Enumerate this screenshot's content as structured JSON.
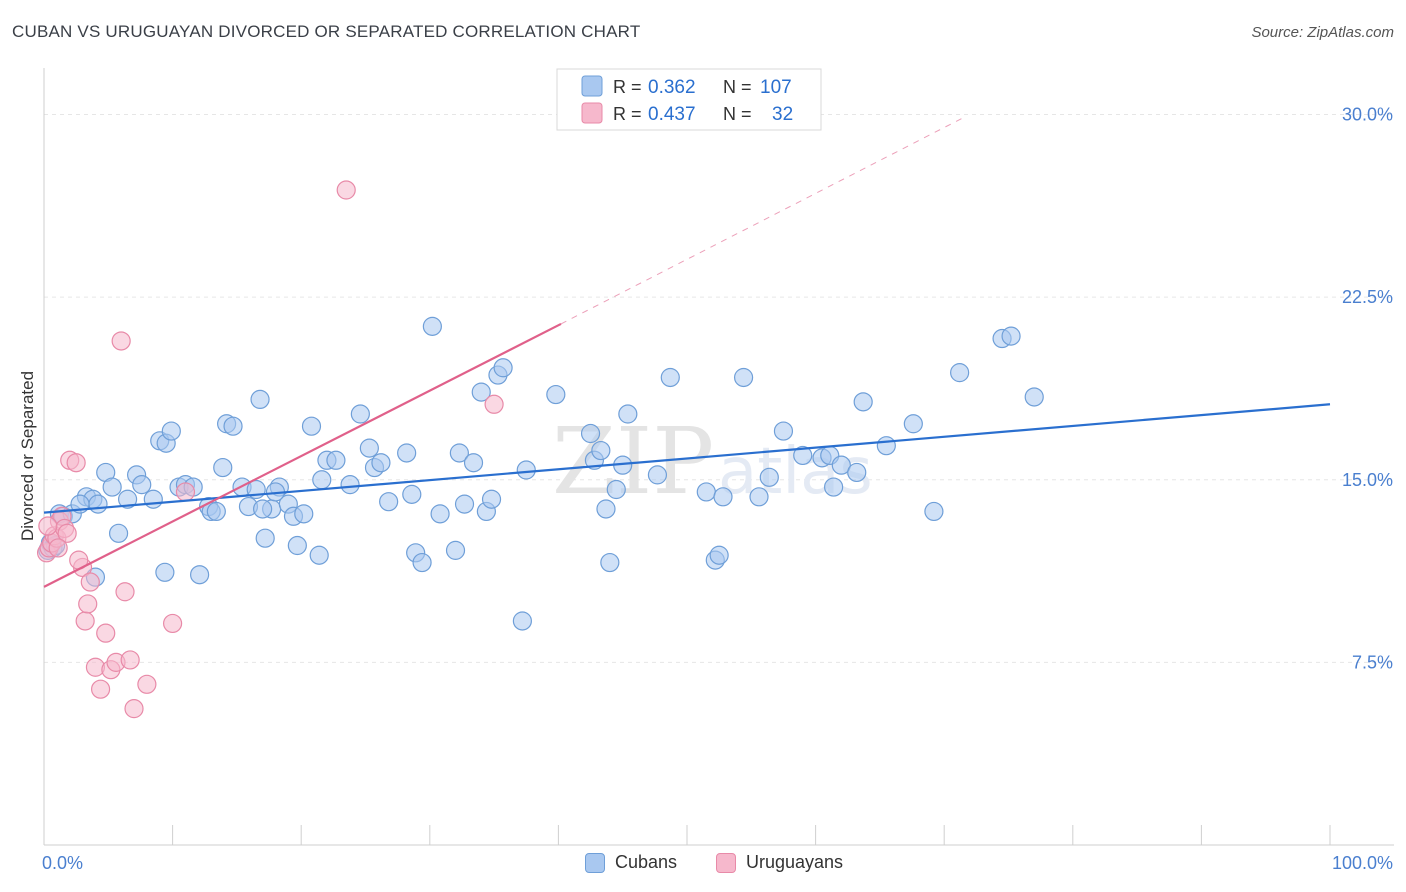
{
  "title": "CUBAN VS URUGUAYAN DIVORCED OR SEPARATED CORRELATION CHART",
  "source": "Source: ZipAtlas.com",
  "watermark": {
    "zip": "ZIP",
    "atlas": "atlas"
  },
  "colors": {
    "cubans_fill": "#a9c8f0",
    "cubans_stroke": "#6f9fd8",
    "cubans_line": "#2a6fcf",
    "uruguayans_fill": "#f6b8cc",
    "uruguayans_stroke": "#e88aa8",
    "uruguayans_line": "#e0608a",
    "tick_label": "#4a7fcf",
    "grid": "#e6e6e6"
  },
  "legend_box": {
    "rows": [
      {
        "r_label": "R =",
        "r_value": "0.362",
        "n_label": "N =",
        "n_value": "107"
      },
      {
        "r_label": "R =",
        "r_value": "0.437",
        "n_label": "N =",
        "n_value": "32"
      }
    ]
  },
  "chart_data": {
    "type": "scatter",
    "title": "CUBAN VS URUGUAYAN DIVORCED OR SEPARATED CORRELATION CHART",
    "xlabel": "",
    "ylabel": "Divorced or Separated",
    "xlim": [
      0,
      100
    ],
    "ylim": [
      0,
      31.5
    ],
    "x_tick_labels": [
      "0.0%",
      "100.0%"
    ],
    "y_ticks": [
      7.5,
      15.0,
      22.5,
      30.0
    ],
    "y_tick_labels": [
      "7.5%",
      "15.0%",
      "22.5%",
      "30.0%"
    ],
    "grid": true,
    "legend_position": "top-center",
    "series": [
      {
        "name": "Cubans",
        "r": 0.362,
        "n": 107,
        "trend": {
          "x": [
            0,
            100
          ],
          "y": [
            13.65,
            18.1
          ]
        },
        "points": [
          [
            0.3,
            12.1
          ],
          [
            0.5,
            12.4
          ],
          [
            0.7,
            12.2
          ],
          [
            0.9,
            12.3
          ],
          [
            1.2,
            13.6
          ],
          [
            1.5,
            13.5
          ],
          [
            2.2,
            13.6
          ],
          [
            3.3,
            14.3
          ],
          [
            3.8,
            14.2
          ],
          [
            4.2,
            14.0
          ],
          [
            4.8,
            15.3
          ],
          [
            5.3,
            14.7
          ],
          [
            5.8,
            12.8
          ],
          [
            6.5,
            14.2
          ],
          [
            7.2,
            15.2
          ],
          [
            7.6,
            14.8
          ],
          [
            8.5,
            14.2
          ],
          [
            9.0,
            16.6
          ],
          [
            9.5,
            16.5
          ],
          [
            9.9,
            17.0
          ],
          [
            10.5,
            14.7
          ],
          [
            11.0,
            14.8
          ],
          [
            11.6,
            14.7
          ],
          [
            12.1,
            11.1
          ],
          [
            12.8,
            13.9
          ],
          [
            13.0,
            13.7
          ],
          [
            13.4,
            13.7
          ],
          [
            13.9,
            15.5
          ],
          [
            14.2,
            17.3
          ],
          [
            14.7,
            17.2
          ],
          [
            15.4,
            14.7
          ],
          [
            15.9,
            13.9
          ],
          [
            16.5,
            14.6
          ],
          [
            16.8,
            18.3
          ],
          [
            17.2,
            12.6
          ],
          [
            17.7,
            13.8
          ],
          [
            18.3,
            14.7
          ],
          [
            19.0,
            14.0
          ],
          [
            19.4,
            13.5
          ],
          [
            19.7,
            12.3
          ],
          [
            20.2,
            13.6
          ],
          [
            20.8,
            17.2
          ],
          [
            21.4,
            11.9
          ],
          [
            21.6,
            15.0
          ],
          [
            22.0,
            15.8
          ],
          [
            23.8,
            14.8
          ],
          [
            24.6,
            17.7
          ],
          [
            25.3,
            16.3
          ],
          [
            25.7,
            15.5
          ],
          [
            26.2,
            15.7
          ],
          [
            26.8,
            14.1
          ],
          [
            28.2,
            16.1
          ],
          [
            28.6,
            14.4
          ],
          [
            28.9,
            12.0
          ],
          [
            29.4,
            11.6
          ],
          [
            30.2,
            21.3
          ],
          [
            30.8,
            13.6
          ],
          [
            32.0,
            12.1
          ],
          [
            32.3,
            16.1
          ],
          [
            32.7,
            14.0
          ],
          [
            33.4,
            15.7
          ],
          [
            34.0,
            18.6
          ],
          [
            34.4,
            13.7
          ],
          [
            34.8,
            14.2
          ],
          [
            35.3,
            19.3
          ],
          [
            35.7,
            19.6
          ],
          [
            37.2,
            9.2
          ],
          [
            37.5,
            15.4
          ],
          [
            39.8,
            18.5
          ],
          [
            42.5,
            16.9
          ],
          [
            42.8,
            15.8
          ],
          [
            43.3,
            16.2
          ],
          [
            43.7,
            13.8
          ],
          [
            44.0,
            11.6
          ],
          [
            44.5,
            14.6
          ],
          [
            45.0,
            15.6
          ],
          [
            45.4,
            17.7
          ],
          [
            47.7,
            15.2
          ],
          [
            48.7,
            19.2
          ],
          [
            51.5,
            14.5
          ],
          [
            52.2,
            11.7
          ],
          [
            52.5,
            11.9
          ],
          [
            52.8,
            14.3
          ],
          [
            54.4,
            19.2
          ],
          [
            55.6,
            14.3
          ],
          [
            56.4,
            15.1
          ],
          [
            57.5,
            17.0
          ],
          [
            59.0,
            16.0
          ],
          [
            60.5,
            15.9
          ],
          [
            61.1,
            16.0
          ],
          [
            61.4,
            14.7
          ],
          [
            62.0,
            15.6
          ],
          [
            63.2,
            15.3
          ],
          [
            63.7,
            18.2
          ],
          [
            65.5,
            16.4
          ],
          [
            67.6,
            17.3
          ],
          [
            69.2,
            13.7
          ],
          [
            71.2,
            19.4
          ],
          [
            74.5,
            20.8
          ],
          [
            75.2,
            20.9
          ],
          [
            77.0,
            18.4
          ],
          [
            17.0,
            13.8
          ],
          [
            22.7,
            15.8
          ],
          [
            18.0,
            14.5
          ],
          [
            9.4,
            11.2
          ],
          [
            2.8,
            14.0
          ],
          [
            4.0,
            11.0
          ]
        ]
      },
      {
        "name": "Uruguayans",
        "r": 0.437,
        "n": 32,
        "trend": {
          "x": [
            0,
            40.2
          ],
          "y": [
            10.6,
            21.4
          ]
        },
        "trend_dashed": {
          "x": [
            40.2,
            71.6
          ],
          "y": [
            21.4,
            29.9
          ]
        },
        "points": [
          [
            0.2,
            12.0
          ],
          [
            0.4,
            12.2
          ],
          [
            0.6,
            12.4
          ],
          [
            0.8,
            12.7
          ],
          [
            1.0,
            12.6
          ],
          [
            1.2,
            13.3
          ],
          [
            1.4,
            13.5
          ],
          [
            1.6,
            13.0
          ],
          [
            1.8,
            12.8
          ],
          [
            2.0,
            15.8
          ],
          [
            2.5,
            15.7
          ],
          [
            3.0,
            11.4
          ],
          [
            3.2,
            9.2
          ],
          [
            3.4,
            9.9
          ],
          [
            3.6,
            10.8
          ],
          [
            4.0,
            7.3
          ],
          [
            4.4,
            6.4
          ],
          [
            4.8,
            8.7
          ],
          [
            5.2,
            7.2
          ],
          [
            5.6,
            7.5
          ],
          [
            6.0,
            20.7
          ],
          [
            6.3,
            10.4
          ],
          [
            6.7,
            7.6
          ],
          [
            7.0,
            5.6
          ],
          [
            8.0,
            6.6
          ],
          [
            10.0,
            9.1
          ],
          [
            11.0,
            14.5
          ],
          [
            1.1,
            12.2
          ],
          [
            0.3,
            13.1
          ],
          [
            23.5,
            26.9
          ],
          [
            35.0,
            18.1
          ],
          [
            2.7,
            11.7
          ]
        ]
      }
    ]
  }
}
